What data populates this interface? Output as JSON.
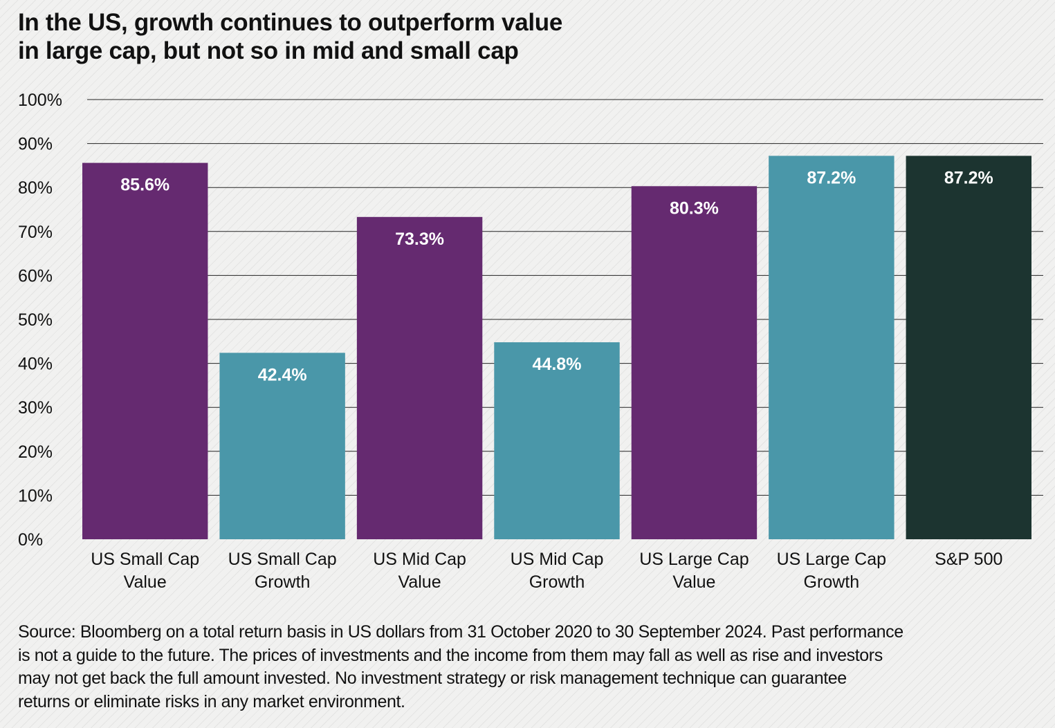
{
  "title_lines": [
    "In the US, growth continues to outperform value",
    "in large cap, but not so in mid and small cap"
  ],
  "colors": {
    "value": "#652a70",
    "growth": "#4a97a9",
    "benchmark": "#1c3430",
    "gridline": "#222222",
    "bar_label": "#ffffff"
  },
  "chart_data": {
    "type": "bar",
    "title": "In the US, growth continues to outperform value in large cap, but not so in mid and small cap",
    "xlabel": "",
    "ylabel": "",
    "ylim": [
      0,
      100
    ],
    "grid": true,
    "legend": "none",
    "y_ticks": [
      "0%",
      "10%",
      "20%",
      "30%",
      "40%",
      "50%",
      "60%",
      "70%",
      "80%",
      "90%",
      "100%"
    ],
    "y_tick_values": [
      0,
      10,
      20,
      30,
      40,
      50,
      60,
      70,
      80,
      90,
      100
    ],
    "categories": [
      [
        "US Small Cap",
        "Value"
      ],
      [
        "US Small Cap",
        "Growth"
      ],
      [
        "US Mid Cap",
        "Value"
      ],
      [
        "US Mid Cap",
        "Growth"
      ],
      [
        "US Large Cap",
        "Value"
      ],
      [
        "US Large Cap",
        "Growth"
      ],
      [
        "S&P 500"
      ]
    ],
    "values": [
      85.6,
      42.4,
      73.3,
      44.8,
      80.3,
      87.2,
      87.2
    ],
    "value_labels": [
      "85.6%",
      "42.4%",
      "73.3%",
      "44.8%",
      "80.3%",
      "87.2%",
      "87.2%"
    ],
    "bar_groups": [
      "value",
      "growth",
      "value",
      "growth",
      "value",
      "growth",
      "benchmark"
    ]
  },
  "footnote_lines": [
    "Source: Bloomberg on a total return basis in US dollars from 31 October 2020 to 30 September 2024. Past performance",
    "is not a guide to the future. The prices of investments and the income from them may fall as well as rise and investors",
    "may not get back the full amount invested. No investment strategy or risk management technique can guarantee",
    "returns or eliminate risks in any market environment."
  ]
}
